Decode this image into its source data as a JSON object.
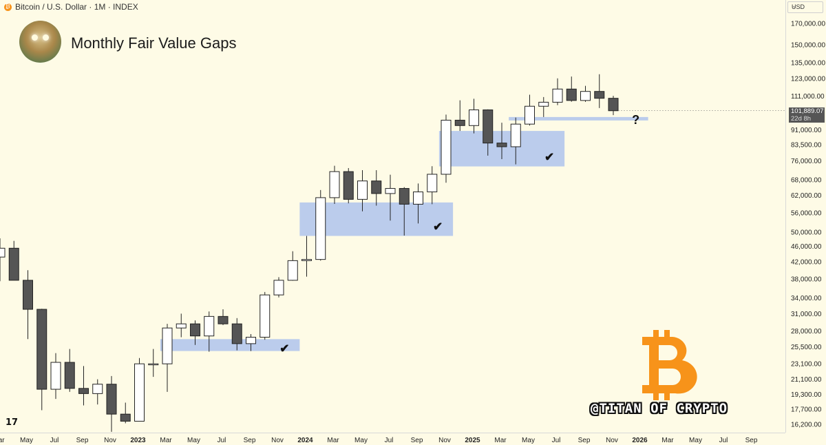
{
  "header": {
    "symbol": "Bitcoin / U.S. Dollar · 1M · INDEX"
  },
  "title": "Monthly Fair Value Gaps",
  "watermark": "@TITAN OF CRYPTO",
  "tv_logo": "17",
  "currency_selector": "USD",
  "last_price": {
    "value": "101,889.07",
    "countdown": "22d 8h"
  },
  "question_mark": "?",
  "checkmark": "✔",
  "colors": {
    "background": "#fefbe6",
    "gap_zone": "#b4c6ec",
    "bull_candle": "#ffffff",
    "bear_candle": "#555555",
    "bitcoin_logo": "#f7931a"
  },
  "icons": {
    "logo": "tradingview-logo-icon",
    "bitcoin": "bitcoin-logo-icon",
    "avatar": "titan-avatar-icon"
  },
  "chart_data": {
    "type": "candlestick",
    "title": "Monthly Fair Value Gaps",
    "scale": "log",
    "y_ticks": [
      "170,000.00",
      "150,000.00",
      "135,000.00",
      "123,000.00",
      "111,000.00",
      "91,000.00",
      "83,500.00",
      "76,000.00",
      "68,000.00",
      "62,000.00",
      "56,000.00",
      "50,000.00",
      "46,000.00",
      "42,000.00",
      "38,000.00",
      "34,000.00",
      "31,000.00",
      "28,000.00",
      "25,500.00",
      "23,100.00",
      "21,100.00",
      "19,300.00",
      "17,700.00",
      "16,200.00"
    ],
    "y_tick_values": [
      170000,
      150000,
      135000,
      123000,
      111000,
      91000,
      83500,
      76000,
      68000,
      62000,
      56000,
      50000,
      46000,
      42000,
      38000,
      34000,
      31000,
      28000,
      25500,
      23100,
      21100,
      19300,
      17700,
      16200
    ],
    "x_ticks": [
      {
        "label": "Mar",
        "month": "2022-03",
        "bold": false
      },
      {
        "label": "May",
        "month": "2022-05",
        "bold": false
      },
      {
        "label": "Jul",
        "month": "2022-07",
        "bold": false
      },
      {
        "label": "Sep",
        "month": "2022-09",
        "bold": false
      },
      {
        "label": "Nov",
        "month": "2022-11",
        "bold": false
      },
      {
        "label": "2023",
        "month": "2023-01",
        "bold": true
      },
      {
        "label": "Mar",
        "month": "2023-03",
        "bold": false
      },
      {
        "label": "May",
        "month": "2023-05",
        "bold": false
      },
      {
        "label": "Jul",
        "month": "2023-07",
        "bold": false
      },
      {
        "label": "Sep",
        "month": "2023-09",
        "bold": false
      },
      {
        "label": "Nov",
        "month": "2023-11",
        "bold": false
      },
      {
        "label": "2024",
        "month": "2024-01",
        "bold": true
      },
      {
        "label": "Mar",
        "month": "2024-03",
        "bold": false
      },
      {
        "label": "May",
        "month": "2024-05",
        "bold": false
      },
      {
        "label": "Jul",
        "month": "2024-07",
        "bold": false
      },
      {
        "label": "Sep",
        "month": "2024-09",
        "bold": false
      },
      {
        "label": "Nov",
        "month": "2024-11",
        "bold": false
      },
      {
        "label": "2025",
        "month": "2025-01",
        "bold": true
      },
      {
        "label": "Mar",
        "month": "2025-03",
        "bold": false
      },
      {
        "label": "May",
        "month": "2025-05",
        "bold": false
      },
      {
        "label": "Jul",
        "month": "2025-07",
        "bold": false
      },
      {
        "label": "Sep",
        "month": "2025-09",
        "bold": false
      },
      {
        "label": "Nov",
        "month": "2025-11",
        "bold": false
      },
      {
        "label": "2026",
        "month": "2026-01",
        "bold": true
      },
      {
        "label": "Mar",
        "month": "2026-03",
        "bold": false
      },
      {
        "label": "May",
        "month": "2026-05",
        "bold": false
      },
      {
        "label": "Jul",
        "month": "2026-07",
        "bold": false
      },
      {
        "label": "Sep",
        "month": "2026-09",
        "bold": false
      }
    ],
    "candles": [
      {
        "month": "2022-03",
        "o": 43200,
        "h": 48200,
        "l": 37500,
        "c": 45500
      },
      {
        "month": "2022-04",
        "o": 45500,
        "h": 47500,
        "l": 37700,
        "c": 37700
      },
      {
        "month": "2022-05",
        "o": 37700,
        "h": 40000,
        "l": 26700,
        "c": 31800
      },
      {
        "month": "2022-06",
        "o": 31800,
        "h": 31900,
        "l": 17600,
        "c": 19900
      },
      {
        "month": "2022-07",
        "o": 19900,
        "h": 24600,
        "l": 18800,
        "c": 23300
      },
      {
        "month": "2022-08",
        "o": 23300,
        "h": 25200,
        "l": 19600,
        "c": 20000
      },
      {
        "month": "2022-09",
        "o": 20000,
        "h": 22800,
        "l": 18100,
        "c": 19400
      },
      {
        "month": "2022-10",
        "o": 19400,
        "h": 21100,
        "l": 18200,
        "c": 20500
      },
      {
        "month": "2022-11",
        "o": 20500,
        "h": 21500,
        "l": 15500,
        "c": 17200
      },
      {
        "month": "2022-12",
        "o": 17200,
        "h": 18400,
        "l": 16300,
        "c": 16500
      },
      {
        "month": "2023-01",
        "o": 16500,
        "h": 23900,
        "l": 16500,
        "c": 23100
      },
      {
        "month": "2023-02",
        "o": 23100,
        "h": 25200,
        "l": 21400,
        "c": 23100
      },
      {
        "month": "2023-03",
        "o": 23100,
        "h": 29200,
        "l": 19600,
        "c": 28500
      },
      {
        "month": "2023-04",
        "o": 28500,
        "h": 31000,
        "l": 27000,
        "c": 29200
      },
      {
        "month": "2023-05",
        "o": 29200,
        "h": 29800,
        "l": 25800,
        "c": 27200
      },
      {
        "month": "2023-06",
        "o": 27200,
        "h": 31400,
        "l": 24800,
        "c": 30500
      },
      {
        "month": "2023-07",
        "o": 30500,
        "h": 31800,
        "l": 29000,
        "c": 29200
      },
      {
        "month": "2023-08",
        "o": 29200,
        "h": 30200,
        "l": 25000,
        "c": 26000
      },
      {
        "month": "2023-09",
        "o": 26000,
        "h": 27500,
        "l": 24900,
        "c": 27000
      },
      {
        "month": "2023-10",
        "o": 27000,
        "h": 35200,
        "l": 26600,
        "c": 34600
      },
      {
        "month": "2023-11",
        "o": 34600,
        "h": 38400,
        "l": 34100,
        "c": 37700
      },
      {
        "month": "2023-12",
        "o": 37700,
        "h": 44700,
        "l": 37600,
        "c": 42300
      },
      {
        "month": "2024-01",
        "o": 42300,
        "h": 48900,
        "l": 38500,
        "c": 42600
      },
      {
        "month": "2024-02",
        "o": 42600,
        "h": 64000,
        "l": 42300,
        "c": 61200
      },
      {
        "month": "2024-03",
        "o": 61200,
        "h": 73800,
        "l": 59000,
        "c": 71300
      },
      {
        "month": "2024-04",
        "o": 71300,
        "h": 72800,
        "l": 59200,
        "c": 60600
      },
      {
        "month": "2024-05",
        "o": 60600,
        "h": 71900,
        "l": 56500,
        "c": 67500
      },
      {
        "month": "2024-06",
        "o": 67500,
        "h": 71900,
        "l": 58400,
        "c": 62700
      },
      {
        "month": "2024-07",
        "o": 62700,
        "h": 70000,
        "l": 53500,
        "c": 64600
      },
      {
        "month": "2024-08",
        "o": 64600,
        "h": 65100,
        "l": 49000,
        "c": 58900
      },
      {
        "month": "2024-09",
        "o": 58900,
        "h": 66500,
        "l": 52600,
        "c": 63300
      },
      {
        "month": "2024-10",
        "o": 63300,
        "h": 73600,
        "l": 58900,
        "c": 70200
      },
      {
        "month": "2024-11",
        "o": 70200,
        "h": 99600,
        "l": 66800,
        "c": 96400
      },
      {
        "month": "2024-12",
        "o": 96400,
        "h": 108300,
        "l": 90500,
        "c": 93400
      },
      {
        "month": "2025-01",
        "o": 93400,
        "h": 109300,
        "l": 89200,
        "c": 102400
      },
      {
        "month": "2025-02",
        "o": 102400,
        "h": 102700,
        "l": 78300,
        "c": 84300
      },
      {
        "month": "2025-03",
        "o": 84300,
        "h": 95000,
        "l": 76700,
        "c": 82500
      },
      {
        "month": "2025-04",
        "o": 82500,
        "h": 97900,
        "l": 74400,
        "c": 94200
      },
      {
        "month": "2025-05",
        "o": 94200,
        "h": 111900,
        "l": 93400,
        "c": 104600
      },
      {
        "month": "2025-06",
        "o": 104600,
        "h": 110400,
        "l": 98200,
        "c": 107100
      },
      {
        "month": "2025-07",
        "o": 107100,
        "h": 123200,
        "l": 105300,
        "c": 115700
      },
      {
        "month": "2025-08",
        "o": 115700,
        "h": 124500,
        "l": 107400,
        "c": 108200
      },
      {
        "month": "2025-09",
        "o": 108200,
        "h": 117900,
        "l": 107300,
        "c": 114100
      },
      {
        "month": "2025-10",
        "o": 114100,
        "h": 126200,
        "l": 103500,
        "c": 109600
      },
      {
        "month": "2025-11",
        "o": 109600,
        "h": 111200,
        "l": 99300,
        "c": 101889
      }
    ],
    "fair_value_gaps": [
      {
        "start": "2023-03",
        "end": "2023-12",
        "top": 26700,
        "bottom": 24900,
        "status": "filled"
      },
      {
        "start": "2024-01",
        "end": "2024-11",
        "top": 59500,
        "bottom": 48900,
        "status": "filled"
      },
      {
        "start": "2024-11",
        "end": "2025-07",
        "top": 90500,
        "bottom": 73500,
        "status": "filled"
      },
      {
        "start": "2025-04",
        "end": "2026-01",
        "top": 98200,
        "bottom": 96500,
        "status": "open"
      }
    ]
  }
}
